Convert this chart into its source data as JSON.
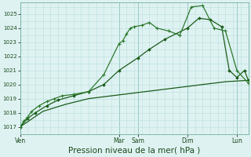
{
  "bg_color": "#dff2f2",
  "grid_color": "#b8dede",
  "line_color1": "#2d7a2d",
  "line_color2": "#1a5c1a",
  "line_color3": "#1a5c1a",
  "xlabel": "Pression niveau de la mer( hPa )",
  "xlabel_fontsize": 7.5,
  "yticks": [
    1017,
    1018,
    1019,
    1020,
    1021,
    1022,
    1023,
    1024,
    1025
  ],
  "ylim": [
    1016.5,
    1025.8
  ],
  "xlim": [
    0,
    30
  ],
  "day_labels": [
    "Ven",
    "Mar",
    "Sam",
    "Dim",
    "Lun"
  ],
  "day_x": [
    0,
    13.0,
    15.5,
    22.0,
    28.5
  ],
  "line1_x": [
    0,
    0.5,
    1.0,
    1.5,
    2.5,
    3.5,
    4.5,
    5.5,
    7.0,
    9.0,
    11.0,
    13.0,
    13.5,
    14.0,
    14.5,
    15.0,
    16.0,
    17.0,
    18.0,
    19.5,
    21.0,
    22.5,
    24.0,
    25.5,
    27.0,
    28.5,
    30.0
  ],
  "line1_y": [
    1017.0,
    1017.4,
    1017.7,
    1018.1,
    1018.5,
    1018.8,
    1019.0,
    1019.2,
    1019.3,
    1019.5,
    1020.7,
    1022.9,
    1023.1,
    1023.6,
    1024.0,
    1024.1,
    1024.2,
    1024.4,
    1024.0,
    1023.8,
    1023.5,
    1025.5,
    1025.6,
    1024.0,
    1023.8,
    1021.0,
    1020.1
  ],
  "line2_x": [
    0,
    1.0,
    2.0,
    3.5,
    5.0,
    7.0,
    9.0,
    11.0,
    13.0,
    15.5,
    17.0,
    19.0,
    22.0,
    23.5,
    25.0,
    26.5,
    27.5,
    28.5,
    29.5,
    30.0
  ],
  "line2_y": [
    1017.0,
    1017.6,
    1018.0,
    1018.5,
    1018.9,
    1019.2,
    1019.5,
    1020.0,
    1021.0,
    1021.9,
    1022.5,
    1023.2,
    1024.0,
    1024.7,
    1024.6,
    1024.1,
    1021.0,
    1020.5,
    1021.0,
    1020.3
  ],
  "line3_x": [
    0,
    3,
    6,
    9,
    12,
    15,
    18,
    21,
    24,
    27,
    30
  ],
  "line3_y": [
    1017.0,
    1018.1,
    1018.6,
    1019.0,
    1019.2,
    1019.4,
    1019.6,
    1019.8,
    1020.0,
    1020.2,
    1020.3
  ],
  "vline_x": [
    0,
    13.0,
    15.5,
    22.0,
    28.5
  ]
}
